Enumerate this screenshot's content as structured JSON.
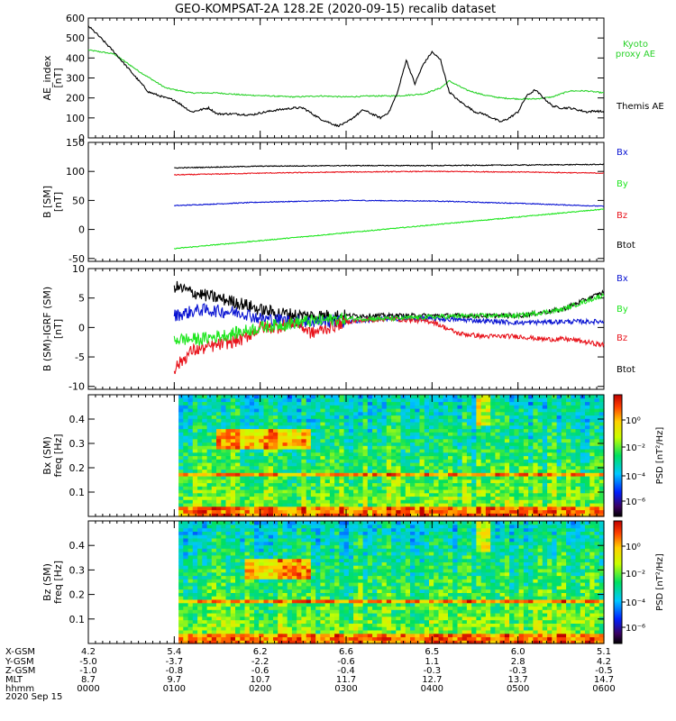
{
  "title": "GEO-KOMPSAT-2A 128.2E (2020-09-15) recalib dataset",
  "colors": {
    "black": "#000000",
    "red": "#e8141c",
    "blue": "#0a14d2",
    "green": "#1ee61e",
    "kyoto": "#2ad22a"
  },
  "chart_data": [
    {
      "type": "line",
      "ylabel": "AE_index\n[nT]",
      "ylim": [
        0,
        600
      ],
      "yticks": [
        "0",
        "100",
        "200",
        "300",
        "400",
        "500",
        "600"
      ],
      "series": [
        {
          "name": "Kyoto\nproxy AE",
          "color_key": "kyoto",
          "x_hours": [
            0,
            0.3,
            0.6,
            0.9,
            1.2,
            1.5,
            1.8,
            2.1,
            2.4,
            2.7,
            3.0,
            3.3,
            3.6,
            3.9,
            4.1,
            4.2,
            4.4,
            4.6,
            4.8,
            5.0,
            5.2,
            5.4,
            5.6,
            5.8,
            6.0
          ],
          "values": [
            440,
            420,
            330,
            250,
            225,
            225,
            215,
            210,
            205,
            210,
            205,
            210,
            210,
            220,
            250,
            285,
            240,
            215,
            200,
            195,
            195,
            205,
            235,
            235,
            225
          ]
        },
        {
          "name": "Themis AE",
          "color_key": "black",
          "x_hours": [
            0,
            0.1,
            0.3,
            0.5,
            0.7,
            0.9,
            1.0,
            1.2,
            1.4,
            1.5,
            1.7,
            1.9,
            2.0,
            2.2,
            2.4,
            2.5,
            2.7,
            2.9,
            3.0,
            3.2,
            3.3,
            3.4,
            3.5,
            3.6,
            3.7,
            3.8,
            3.9,
            4.0,
            4.1,
            4.2,
            4.3,
            4.4,
            4.5,
            4.6,
            4.7,
            4.8,
            4.9,
            5.0,
            5.1,
            5.2,
            5.3,
            5.4,
            5.5,
            5.6,
            5.7,
            5.8,
            5.9,
            6.0
          ],
          "values": [
            560,
            520,
            430,
            330,
            230,
            200,
            190,
            130,
            150,
            120,
            120,
            115,
            125,
            140,
            150,
            150,
            95,
            60,
            75,
            140,
            120,
            100,
            130,
            230,
            390,
            270,
            370,
            430,
            390,
            230,
            190,
            160,
            130,
            120,
            100,
            80,
            100,
            130,
            210,
            240,
            200,
            160,
            150,
            150,
            140,
            130,
            135,
            130
          ]
        }
      ]
    },
    {
      "type": "line",
      "ylabel": "B [SM]\n[nT]",
      "ylim": [
        -55,
        150
      ],
      "yticks": [
        "-50",
        "0",
        "50",
        "100",
        "150"
      ],
      "series": [
        {
          "name": "Bx",
          "color_key": "blue",
          "x_hours": [
            1.0,
            2.0,
            3.0,
            4.0,
            5.0,
            6.0
          ],
          "values": [
            41,
            47,
            50,
            49,
            45,
            40
          ]
        },
        {
          "name": "By",
          "color_key": "green",
          "x_hours": [
            1.0,
            6.0
          ],
          "values": [
            -33,
            35
          ]
        },
        {
          "name": "Bz",
          "color_key": "red",
          "x_hours": [
            1.0,
            2.0,
            3.0,
            4.0,
            5.0,
            6.0
          ],
          "values": [
            94,
            97,
            99,
            100,
            99,
            97
          ]
        },
        {
          "name": "Btot",
          "color_key": "black",
          "x_hours": [
            1.0,
            2.0,
            3.0,
            4.0,
            5.0,
            6.0
          ],
          "values": [
            106,
            109,
            110,
            110,
            111,
            112
          ]
        }
      ]
    },
    {
      "type": "line",
      "ylabel": "B (SM)-IGRF (SM)\n[nT]",
      "ylim": [
        -10.5,
        10
      ],
      "yticks": [
        "-10",
        "-5",
        "0",
        "5",
        "10"
      ],
      "series": [
        {
          "name": "Bx",
          "color_key": "blue",
          "x_hours": [
            1.0,
            1.3,
            1.8,
            2.0,
            2.5,
            3.0,
            3.5,
            4.0,
            4.5,
            5.0,
            5.5,
            6.0
          ],
          "values": [
            2,
            3,
            2.5,
            1.5,
            1,
            1,
            1.5,
            1.5,
            1.2,
            0.8,
            1,
            1
          ]
        },
        {
          "name": "By",
          "color_key": "green",
          "x_hours": [
            1.0,
            1.3,
            1.7,
            2.0,
            2.5,
            3.0,
            3.5,
            4.0,
            4.5,
            5.0,
            5.5,
            6.0
          ],
          "values": [
            -2,
            -2,
            -1,
            0,
            1,
            1.5,
            1.5,
            1.8,
            2,
            2,
            3,
            5.5
          ]
        },
        {
          "name": "Bz",
          "color_key": "red",
          "x_hours": [
            1.0,
            1.2,
            1.5,
            1.8,
            2.0,
            2.2,
            2.4,
            2.6,
            3.0,
            3.5,
            4.0,
            4.3,
            4.6,
            5.0,
            5.3,
            5.6,
            6.0
          ],
          "values": [
            -7,
            -4,
            -3,
            -2,
            0,
            0,
            1,
            -1,
            1,
            1.5,
            1,
            -1,
            -1.5,
            -1.5,
            -2,
            -2,
            -3
          ]
        },
        {
          "name": "Btot",
          "color_key": "black",
          "x_hours": [
            1.0,
            1.2,
            1.5,
            1.8,
            2.0,
            2.2,
            2.5,
            3.0,
            3.5,
            4.0,
            4.5,
            5.0,
            5.5,
            6.0
          ],
          "values": [
            7,
            6,
            5,
            4,
            3,
            2.5,
            2,
            2,
            2,
            2,
            2,
            2,
            3,
            6
          ]
        }
      ]
    },
    {
      "type": "heatmap",
      "ylabel": "Bx (SM)\nfreq [Hz]",
      "ylim": [
        0,
        0.5
      ],
      "yticks": [
        "0.1",
        "0.2",
        "0.3",
        "0.4"
      ],
      "colorbar_label": "PSD [nT²/Hz]",
      "colorbar_ticks": [
        "10⁰",
        "10⁻²",
        "10⁻⁴",
        "10⁻⁶"
      ],
      "hot_spot": {
        "x_hours": [
          1.5,
          2.6
        ],
        "freq_hz": [
          0.28,
          0.36
        ]
      }
    },
    {
      "type": "heatmap",
      "ylabel": "Bz (SM)\nfreq [Hz]",
      "ylim": [
        0,
        0.5
      ],
      "yticks": [
        "0.1",
        "0.2",
        "0.3",
        "0.4"
      ],
      "colorbar_label": "PSD [nT²/Hz]",
      "colorbar_ticks": [
        "10⁰",
        "10⁻²",
        "10⁻⁴",
        "10⁻⁶"
      ],
      "hot_spot": {
        "x_hours": [
          1.8,
          2.6
        ],
        "freq_hz": [
          0.27,
          0.35
        ]
      }
    }
  ],
  "x_axis": {
    "row_labels": [
      "X-GSM",
      "Y-GSM",
      "Z-GSM",
      "MLT",
      "hhmm",
      "2020 Sep 15"
    ],
    "columns": [
      {
        "x_gsm": "4.2",
        "y_gsm": "-5.0",
        "z_gsm": "-1.0",
        "mlt": "8.7",
        "hhmm": "0000"
      },
      {
        "x_gsm": "5.4",
        "y_gsm": "-3.7",
        "z_gsm": "-0.8",
        "mlt": "9.7",
        "hhmm": "0100"
      },
      {
        "x_gsm": "6.2",
        "y_gsm": "-2.2",
        "z_gsm": "-0.6",
        "mlt": "10.7",
        "hhmm": "0200"
      },
      {
        "x_gsm": "6.6",
        "y_gsm": "-0.6",
        "z_gsm": "-0.4",
        "mlt": "11.7",
        "hhmm": "0300"
      },
      {
        "x_gsm": "6.5",
        "y_gsm": "1.1",
        "z_gsm": "-0.3",
        "mlt": "12.7",
        "hhmm": "0400"
      },
      {
        "x_gsm": "6.0",
        "y_gsm": "2.8",
        "z_gsm": "-0.3",
        "mlt": "13.7",
        "hhmm": "0500"
      },
      {
        "x_gsm": "5.1",
        "y_gsm": "4.2",
        "z_gsm": "-0.5",
        "mlt": "14.7",
        "hhmm": "0600"
      }
    ]
  }
}
